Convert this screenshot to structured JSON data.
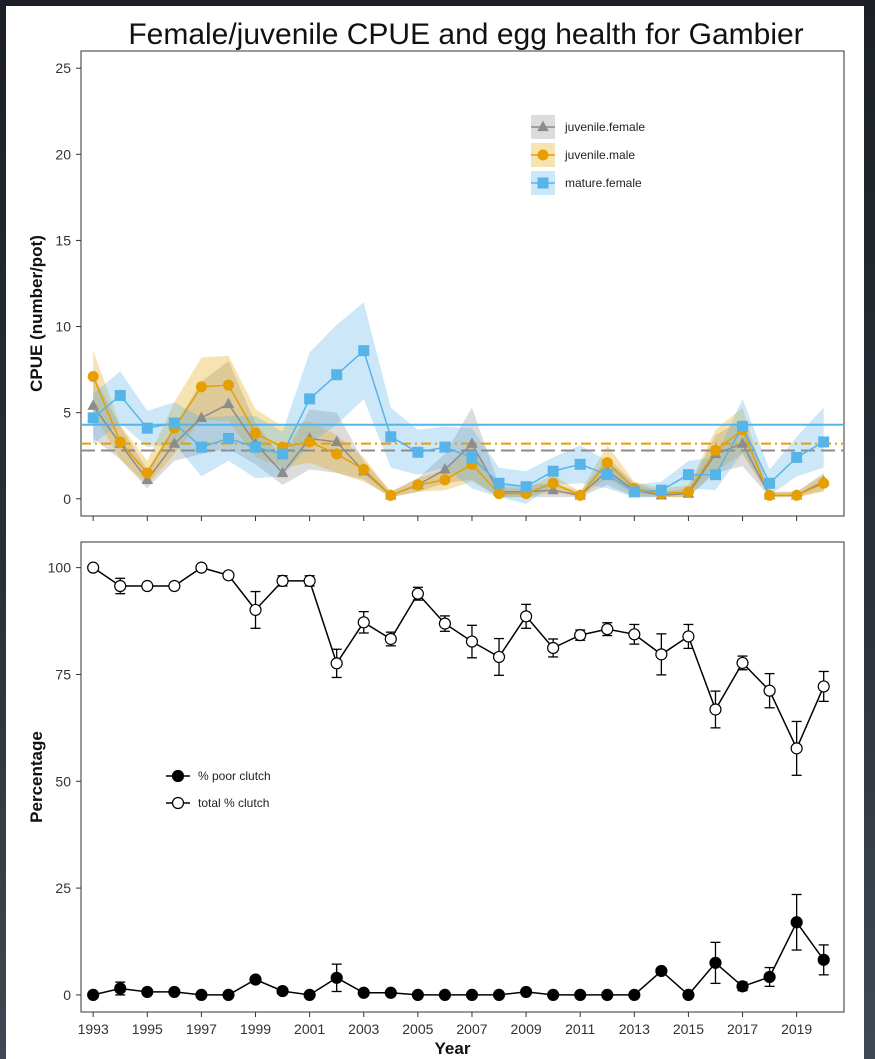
{
  "chart_data": [
    {
      "type": "line",
      "title": "Female/juvenile CPUE and egg health for Gambier",
      "ylabel": "CPUE (number/pot)",
      "ylim": [
        -1,
        26
      ],
      "yticks": [
        0,
        5,
        10,
        15,
        20,
        25
      ],
      "x": [
        1993,
        1994,
        1995,
        1996,
        1997,
        1998,
        1999,
        2000,
        2001,
        2002,
        2003,
        2004,
        2005,
        2006,
        2007,
        2008,
        2009,
        2010,
        2011,
        2012,
        2013,
        2014,
        2015,
        2016,
        2017,
        2018,
        2019,
        2020
      ],
      "series": [
        {
          "name": "juvenile.female",
          "color": "#8c8c8c",
          "marker": "triangle",
          "values": [
            5.4,
            3.2,
            1.1,
            3.2,
            4.7,
            5.5,
            3.2,
            1.5,
            3.5,
            3.3,
            1.6,
            0.2,
            0.8,
            1.7,
            3.2,
            0.4,
            0.4,
            0.5,
            0.2,
            1.6,
            0.5,
            0.2,
            0.3,
            2.6,
            3.2,
            0.2,
            0.2,
            1.0
          ],
          "band_lower": [
            3.5,
            2.3,
            0.6,
            2.2,
            2.6,
            2.9,
            2.0,
            0.8,
            1.7,
            1.5,
            1.1,
            0.1,
            0.4,
            0.9,
            1.1,
            0.1,
            0.1,
            0.1,
            0.1,
            0.8,
            0.1,
            0.1,
            0.1,
            1.5,
            1.9,
            0.1,
            0.1,
            0.5
          ],
          "band_upper": [
            7.2,
            4.2,
            1.7,
            4.2,
            6.8,
            8.0,
            4.4,
            2.3,
            5.2,
            5.0,
            2.2,
            0.4,
            1.2,
            2.6,
            5.3,
            0.8,
            0.8,
            0.9,
            0.4,
            2.4,
            0.9,
            0.4,
            0.6,
            3.7,
            4.6,
            0.4,
            0.4,
            1.5
          ]
        },
        {
          "name": "juvenile.male",
          "color": "#e69f00",
          "marker": "circle",
          "values": [
            7.1,
            3.3,
            1.5,
            4.1,
            6.5,
            6.6,
            3.8,
            3.0,
            3.3,
            2.6,
            1.7,
            0.2,
            0.8,
            1.1,
            2.0,
            0.3,
            0.3,
            0.9,
            0.2,
            2.1,
            0.6,
            0.3,
            0.4,
            2.8,
            4.0,
            0.2,
            0.2,
            0.9
          ],
          "band_lower": [
            5.0,
            2.3,
            0.8,
            2.6,
            4.6,
            4.5,
            2.4,
            1.8,
            2.1,
            1.5,
            1.0,
            0.1,
            0.4,
            0.5,
            1.0,
            0.1,
            0.1,
            0.4,
            0.1,
            1.2,
            0.2,
            0.1,
            0.1,
            1.6,
            2.6,
            0.1,
            0.1,
            0.4
          ],
          "band_upper": [
            8.6,
            4.3,
            2.2,
            5.6,
            8.2,
            8.3,
            5.2,
            4.2,
            4.5,
            3.7,
            2.4,
            0.4,
            1.2,
            1.7,
            3.1,
            0.6,
            0.6,
            1.4,
            0.4,
            3.1,
            1.0,
            0.6,
            0.8,
            4.0,
            5.3,
            0.4,
            0.4,
            1.4
          ]
        },
        {
          "name": "mature.female",
          "color": "#56b4e9",
          "marker": "square",
          "values": [
            4.7,
            6.0,
            4.1,
            4.4,
            3.0,
            3.5,
            3.0,
            2.6,
            5.8,
            7.2,
            8.6,
            3.6,
            2.7,
            3.0,
            2.4,
            0.9,
            0.7,
            1.6,
            2.0,
            1.4,
            0.4,
            0.5,
            1.4,
            1.4,
            4.2,
            0.9,
            2.4,
            3.3
          ],
          "band_lower": [
            3.2,
            4.4,
            3.0,
            3.2,
            1.3,
            2.2,
            1.2,
            1.3,
            3.2,
            4.3,
            5.8,
            1.8,
            1.4,
            1.8,
            0.6,
            0.1,
            -0.3,
            0.8,
            0.9,
            0.6,
            0.1,
            0.1,
            0.6,
            0.5,
            2.7,
            0.2,
            1.3,
            1.8
          ],
          "band_upper": [
            6.1,
            7.4,
            5.1,
            5.6,
            4.7,
            4.8,
            4.8,
            3.9,
            8.5,
            10.1,
            11.4,
            5.3,
            4.0,
            4.2,
            4.1,
            1.8,
            1.6,
            2.4,
            3.1,
            2.2,
            0.8,
            1.0,
            2.2,
            2.4,
            5.8,
            1.7,
            3.6,
            5.3
          ]
        }
      ],
      "hlines": [
        {
          "series": "mature.female",
          "value": 4.3,
          "style": "solid"
        },
        {
          "series": "juvenile.male",
          "value": 3.2,
          "style": "dotdash"
        },
        {
          "series": "juvenile.female",
          "value": 2.8,
          "style": "dashed"
        }
      ],
      "legend_position": "top-right",
      "grid": false
    },
    {
      "type": "line",
      "xlabel": "Year",
      "ylabel": "Percentage",
      "ylim": [
        -4,
        106
      ],
      "yticks": [
        0,
        25,
        50,
        75,
        100
      ],
      "xticks": [
        1993,
        1995,
        1997,
        1999,
        2001,
        2003,
        2005,
        2007,
        2009,
        2011,
        2013,
        2015,
        2017,
        2019
      ],
      "x": [
        1993,
        1994,
        1995,
        1996,
        1997,
        1998,
        1999,
        2000,
        2001,
        2002,
        2003,
        2004,
        2005,
        2006,
        2007,
        2008,
        2009,
        2010,
        2011,
        2012,
        2013,
        2014,
        2015,
        2016,
        2017,
        2018,
        2019,
        2020
      ],
      "series": [
        {
          "name": "% poor clutch",
          "marker": "filled-circle",
          "values": [
            0,
            1.5,
            0.7,
            0.7,
            0,
            0,
            3.6,
            0.9,
            0,
            4.0,
            0.5,
            0.5,
            0,
            0,
            0,
            0,
            0.7,
            0,
            0,
            0,
            0,
            5.6,
            0,
            7.5,
            2.0,
            4.2,
            17.0,
            8.2
          ],
          "err": [
            0,
            1.5,
            0.4,
            0.4,
            0,
            0,
            0.5,
            0.7,
            0,
            3.2,
            0.3,
            0.3,
            0,
            0,
            0,
            0,
            0.5,
            0,
            0,
            0,
            0,
            0.4,
            0,
            4.8,
            1.0,
            2.2,
            6.5,
            3.5
          ]
        },
        {
          "name": "total % clutch",
          "marker": "open-circle",
          "values": [
            100,
            95.7,
            95.7,
            95.7,
            100,
            98.2,
            90.1,
            96.9,
            96.9,
            77.6,
            87.2,
            83.3,
            93.9,
            86.9,
            82.7,
            79.1,
            88.6,
            81.2,
            84.2,
            85.6,
            84.4,
            79.7,
            83.9,
            66.8,
            77.7,
            71.2,
            57.7,
            72.2
          ],
          "err": [
            0,
            1.8,
            0,
            0,
            0,
            0.5,
            4.3,
            1.2,
            1.2,
            3.3,
            2.5,
            1.6,
            1.5,
            1.8,
            3.8,
            4.3,
            2.8,
            2.1,
            1.2,
            1.5,
            2.3,
            4.8,
            2.8,
            4.3,
            1.6,
            4.0,
            6.3,
            3.5
          ]
        }
      ],
      "legend_position": "middle-left",
      "grid": false
    }
  ]
}
